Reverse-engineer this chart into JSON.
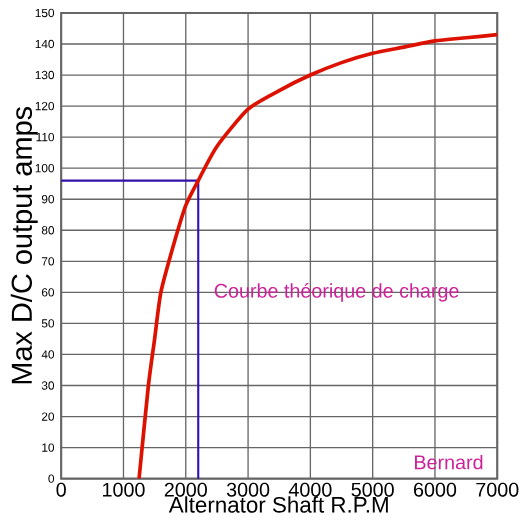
{
  "chart_data": {
    "type": "line",
    "xlabel": "Alternator Shaft R.P.M",
    "ylabel": "Max D/C output amps",
    "series": [
      {
        "color": "#dd1100",
        "x": [
          1250,
          1400,
          1500,
          1600,
          1800,
          2000,
          2200,
          2500,
          3000,
          3500,
          4000,
          4500,
          5000,
          5500,
          6000,
          6500,
          7000
        ],
        "values": [
          0,
          30,
          45,
          60,
          75,
          88,
          96,
          107,
          119,
          125,
          130,
          134,
          137,
          139,
          141,
          142,
          143
        ]
      }
    ],
    "xlim": [
      0,
      7000
    ],
    "xticks": [
      0,
      1000,
      2000,
      3000,
      4000,
      5000,
      6000,
      7000
    ],
    "ylim": [
      0,
      150
    ],
    "yticks": [
      0,
      10,
      20,
      30,
      40,
      50,
      60,
      70,
      80,
      90,
      100,
      110,
      120,
      130,
      140,
      150
    ],
    "grid": true,
    "marker": "none",
    "line_style": "solid",
    "ref_lines": [
      {
        "axis": "x",
        "value": 2200,
        "color": "#3311aa"
      },
      {
        "axis": "y",
        "value": 96,
        "color": "#3311aa"
      }
    ],
    "annotations": [
      {
        "text": "Courbe théorique de charge",
        "x": 2300,
        "y": 60
      },
      "Bernard"
    ]
  }
}
